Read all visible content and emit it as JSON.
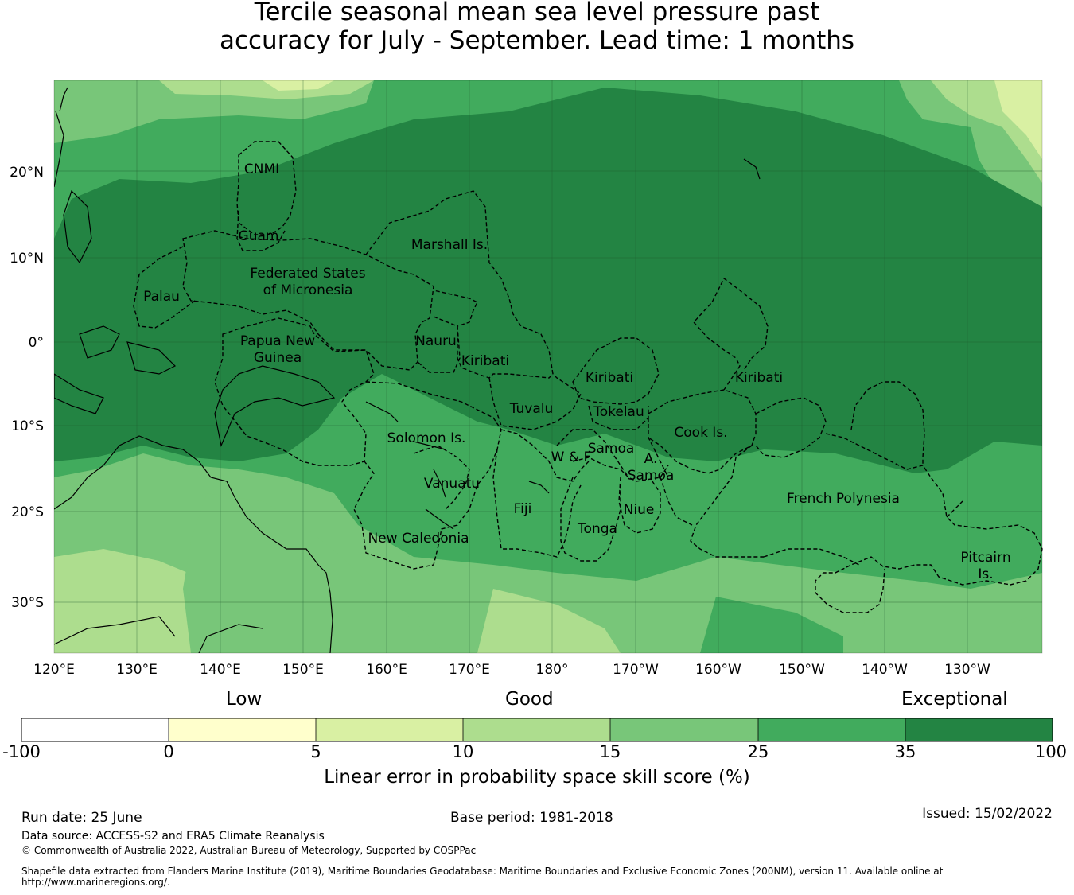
{
  "title": {
    "line1": "Tercile seasonal mean sea level pressure past",
    "line2": "accuracy for July - September. Lead time: 1 months"
  },
  "map": {
    "lat_labels": [
      "20°N",
      "10°N",
      "0°",
      "10°S",
      "20°S",
      "30°S"
    ],
    "lon_labels": [
      "120°E",
      "130°E",
      "140°E",
      "150°E",
      "160°E",
      "170°E",
      "180°",
      "170°W",
      "160°W",
      "150°W",
      "140°W",
      "130°W"
    ],
    "regions": {
      "cnmi": "CNMI",
      "guam": "Guam",
      "marshall": "Marshall Is.",
      "fsm1": "Federated States",
      "fsm2": "of Micronesia",
      "palau": "Palau",
      "png1": "Papua New",
      "png2": "Guinea",
      "nauru": "Nauru",
      "kiribati_w": "Kiribati",
      "kiribati_c": "Kiribati",
      "kiribati_e": "Kiribati",
      "tuvalu": "Tuvalu",
      "tokelau": "Tokelau",
      "cook": "Cook Is.",
      "solomon": "Solomon Is.",
      "samoa": "Samoa",
      "wf": "W & F",
      "asamoa1": "A.",
      "asamoa2": "Samoa",
      "vanuatu": "Vanuatu",
      "fiji": "Fiji",
      "niue": "Niue",
      "tonga": "Tonga",
      "french_polynesia": "French Polynesia",
      "new_caledonia": "New Caledonia",
      "pitcairn1": "Pitcairn",
      "pitcairn2": "Is."
    }
  },
  "colorbar": {
    "category_low": "Low",
    "category_good": "Good",
    "category_exceptional": "Exceptional",
    "ticks": [
      "-100",
      "0",
      "5",
      "10",
      "15",
      "25",
      "35",
      "100"
    ],
    "colors": [
      "#ffffff",
      "#ffffcc",
      "#d9f0a3",
      "#addd8e",
      "#78c679",
      "#41ab5d",
      "#238443"
    ],
    "label": "Linear error in probability space skill score (%)"
  },
  "footer": {
    "run_date": "Run date: 25 June",
    "base_period": "Base period: 1981-2018",
    "issued": "Issued: 15/02/2022",
    "data_source": "Data source: ACCESS-S2 and ERA5 Climate Reanalysis",
    "copyright": "© Commonwealth of Australia 2022, Australian Bureau of Meteorology, Supported by COSPPac",
    "shapefile_line1": "Shapefile data extracted from Flanders Marine Institute (2019), Maritime Boundaries Geodatabase: Maritime Boundaries and Exclusive Economic Zones (200NM), version 11. Available online at",
    "shapefile_line2": "http://www.marineregions.org/."
  }
}
